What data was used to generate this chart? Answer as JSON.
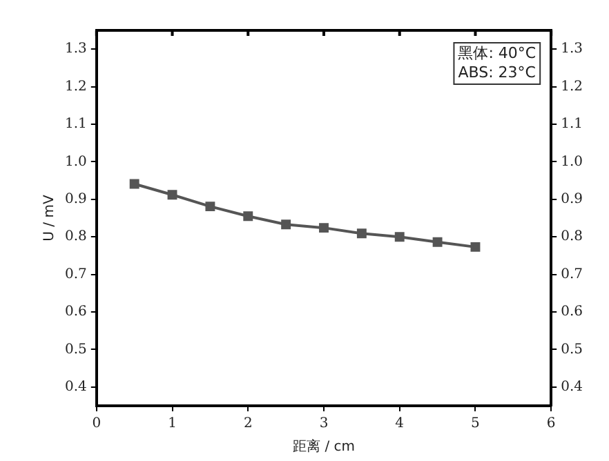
{
  "chart_data": {
    "type": "line",
    "xlabel": "距离 / cm",
    "ylabel": "U / mV",
    "annotations": [
      "黑体: 40°C",
      "ABS: 23°C"
    ],
    "x": [
      0.5,
      1,
      1.5,
      2,
      2.5,
      3,
      3.5,
      4,
      4.5,
      5
    ],
    "series": [
      {
        "color": "#555555",
        "values": [
          0.941,
          0.912,
          0.881,
          0.855,
          0.833,
          0.824,
          0.809,
          0.8,
          0.786,
          0.773
        ]
      }
    ],
    "xlim": [
      0,
      6
    ],
    "xticks": [
      0,
      1,
      2,
      3,
      4,
      5,
      6
    ],
    "ylim": [
      0.35,
      1.35
    ],
    "yticks": [
      0.4,
      0.5,
      0.6,
      0.7,
      0.8,
      0.9,
      {
        "value": 1,
        "label": "1.0"
      },
      1.1,
      1.2,
      1.3
    ],
    "y2lim": [
      0.35,
      1.35
    ],
    "y2ticks": [
      0.4,
      0.5,
      0.6,
      0.7,
      0.8,
      0.9,
      {
        "value": 1,
        "label": "1.0"
      },
      1.1,
      1.2,
      1.3
    ],
    "grid": false,
    "legend": false,
    "marker": "square",
    "line_style": "solid"
  }
}
